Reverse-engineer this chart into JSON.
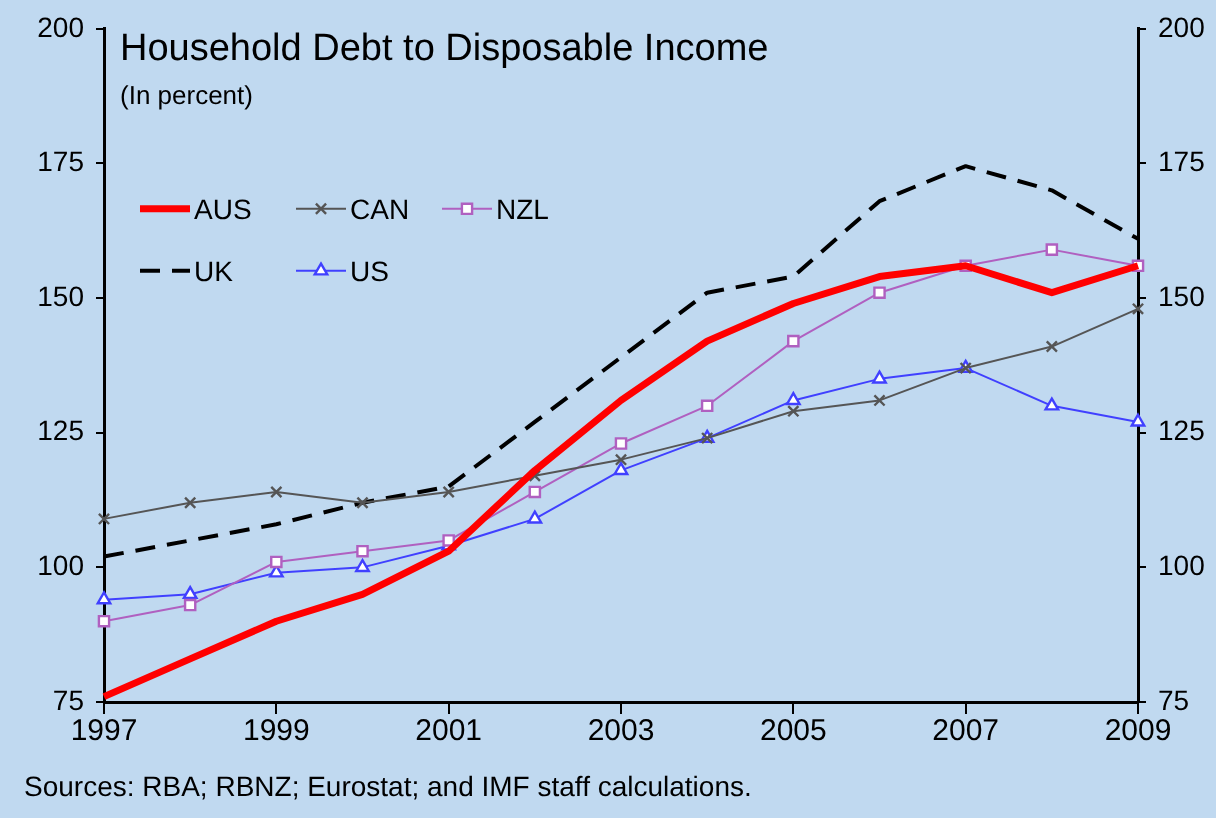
{
  "chart_data": {
    "type": "line",
    "title": "Household Debt to Disposable Income",
    "subtitle": "(In percent)",
    "x": [
      1997,
      1998,
      1999,
      2000,
      2001,
      2002,
      2003,
      2004,
      2005,
      2006,
      2007,
      2008,
      2009
    ],
    "xlim": [
      1997,
      2009
    ],
    "xticks": [
      1997,
      1999,
      2001,
      2003,
      2005,
      2007,
      2009
    ],
    "ylim": [
      75,
      200
    ],
    "yticks": [
      75,
      100,
      125,
      150,
      175,
      200
    ],
    "y2lim": [
      75,
      200
    ],
    "y2ticks": [
      75,
      100,
      125,
      150,
      175,
      200
    ],
    "series": [
      {
        "name": "AUS",
        "color": "#ff0000",
        "marker": "none",
        "line_style": "solid",
        "values": [
          76,
          83,
          90,
          95,
          103,
          118,
          131,
          142,
          149,
          154,
          156,
          151,
          156
        ]
      },
      {
        "name": "CAN",
        "color": "#555555",
        "marker": "cross",
        "line_style": "solid",
        "values": [
          109,
          112,
          114,
          112,
          114,
          117,
          120,
          124,
          129,
          131,
          137,
          141,
          148
        ]
      },
      {
        "name": "NZL",
        "color": "#b060c0",
        "marker": "square",
        "line_style": "solid",
        "values": [
          90,
          93,
          101,
          103,
          105,
          114,
          123,
          130,
          142,
          151,
          156,
          159,
          156
        ]
      },
      {
        "name": "UK",
        "color": "#000000",
        "marker": "none",
        "line_style": "dashed",
        "values": [
          102,
          105,
          108,
          112,
          115,
          127,
          139,
          151,
          154,
          168,
          174.5,
          170,
          161
        ]
      },
      {
        "name": "US",
        "color": "#4040ff",
        "marker": "triangle",
        "line_style": "solid",
        "values": [
          94,
          95,
          99,
          100,
          104,
          109,
          118,
          124,
          131,
          135,
          137,
          130,
          127
        ]
      }
    ],
    "grid": false,
    "legend": "top left",
    "annotations": [
      "Sources: RBA; RBNZ; Eurostat; and IMF staff calculations."
    ]
  }
}
